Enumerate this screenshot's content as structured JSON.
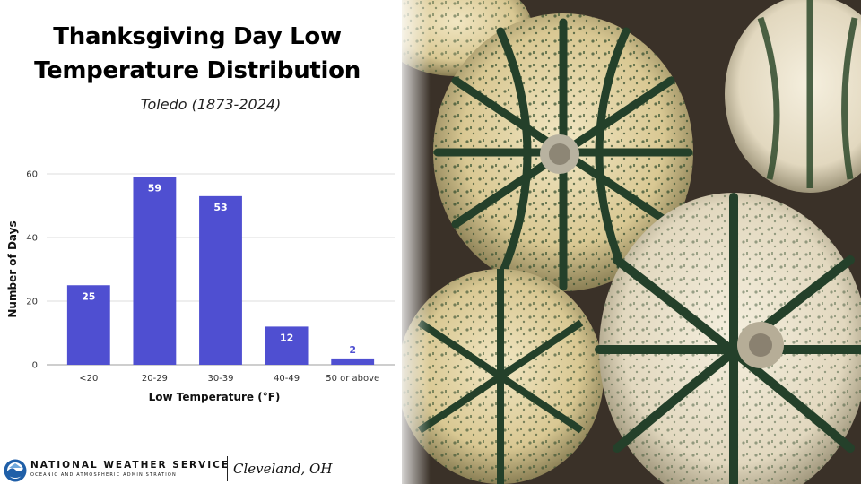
{
  "header": {
    "title": "Thanksgiving Day Low Temperature Distribution",
    "subtitle": "Toledo (1873-2024)"
  },
  "chart_data": {
    "type": "bar",
    "categories": [
      "<20",
      "20-29",
      "30-39",
      "40-49",
      "50 or above"
    ],
    "values": [
      25,
      59,
      53,
      12,
      2
    ],
    "data_labels": [
      "25",
      "59",
      "53",
      "12",
      "2"
    ],
    "xlabel": "Low Temperature (°F)",
    "ylabel": "Number of Days",
    "ylim": [
      0,
      60
    ],
    "yticks": [
      0,
      20,
      40,
      60
    ],
    "grid": true,
    "legend": "none",
    "bar_color": "#4f4fd1"
  },
  "footer": {
    "agency": "NATIONAL WEATHER SERVICE",
    "agency_sub": "OCEANIC AND ATMOSPHERIC ADMINISTRATION",
    "office": "Cleveland, OH"
  },
  "photo": {
    "subject": "decorative squash photograph",
    "icon": "squash-photo"
  },
  "colors": {
    "accent": "#4f4fd1",
    "text": "#111111",
    "grid": "#dddddd"
  }
}
